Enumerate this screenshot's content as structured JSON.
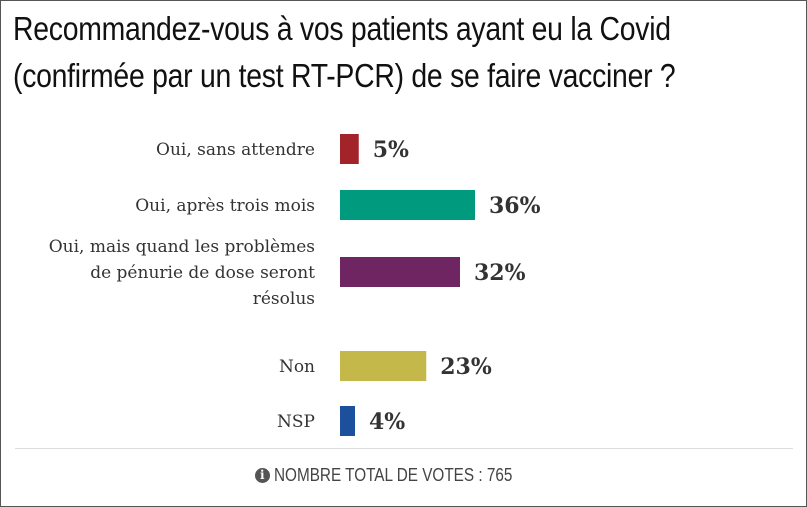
{
  "chart_data": {
    "type": "bar",
    "orientation": "horizontal",
    "title": "Recommandez-vous à vos patients ayant eu la Covid (confirmée par un test RT-PCR) de se faire vacciner ?",
    "title_lines": [
      "Recommandez-vous à vos patients ayant eu la Covid",
      "(confirmée par un test RT-PCR) de se faire vacciner ?"
    ],
    "categories": [
      [
        "Oui, sans attendre"
      ],
      [
        "Oui, après trois mois"
      ],
      [
        "Oui, mais quand les problèmes",
        "de pénurie de dose seront",
        "résolus"
      ],
      [
        "Non"
      ],
      [
        "NSP"
      ]
    ],
    "values": [
      5,
      36,
      32,
      23,
      4
    ],
    "value_labels": [
      "5%",
      "36%",
      "32%",
      "23%",
      "4%"
    ],
    "colors": [
      "#a3232a",
      "#009a7f",
      "#6e2562",
      "#c5b84a",
      "#1c4f9c"
    ],
    "unit": "%",
    "grid": false,
    "legend": "none"
  },
  "footer": {
    "icon": "info-circle-icon",
    "text": "NOMBRE TOTAL DE VOTES : 765"
  }
}
